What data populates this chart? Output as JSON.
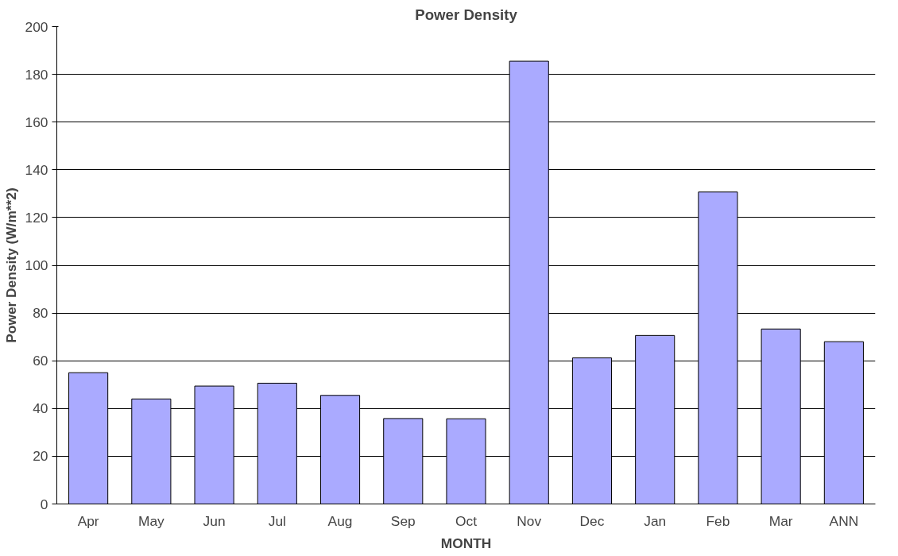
{
  "chart_data": {
    "type": "bar",
    "title": "Power Density",
    "xlabel": "MONTH",
    "ylabel": "Power Density (W/m**2)",
    "categories": [
      "Apr",
      "May",
      "Jun",
      "Jul",
      "Aug",
      "Sep",
      "Oct",
      "Nov",
      "Dec",
      "Jan",
      "Feb",
      "Mar",
      "ANN"
    ],
    "values": [
      55,
      44,
      49.4,
      50.6,
      45.5,
      35.8,
      35.7,
      185.5,
      61.2,
      70.6,
      130.7,
      73.3,
      68
    ],
    "color": "#aaaaff",
    "ylim": [
      0,
      200
    ],
    "yticks": [
      0,
      20,
      40,
      60,
      80,
      100,
      120,
      140,
      160,
      180,
      200
    ],
    "grid": "y"
  }
}
